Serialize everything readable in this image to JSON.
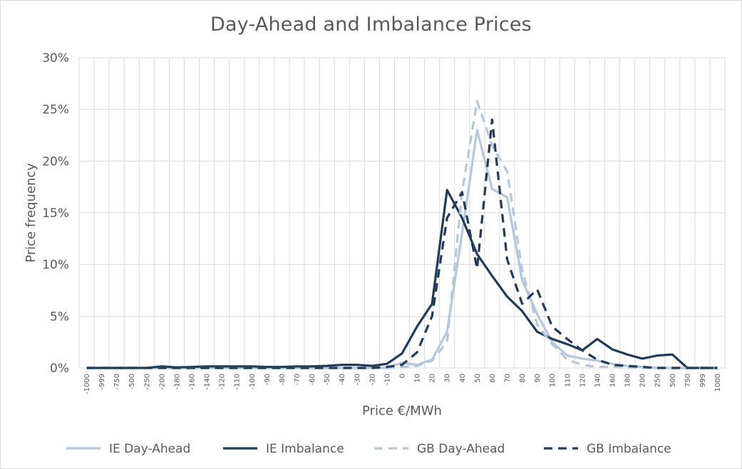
{
  "chart_data": {
    "type": "line",
    "title": "Day-Ahead and Imbalance Prices",
    "xlabel": "Price €/MWh",
    "ylabel": "Price frequency",
    "categories": [
      "-1000",
      "-999",
      "-750",
      "-500",
      "-250",
      "-200",
      "-180",
      "-160",
      "-140",
      "-120",
      "-110",
      "-100",
      "-90",
      "-80",
      "-70",
      "-60",
      "-50",
      "-40",
      "-30",
      "-20",
      "-10",
      "0",
      "10",
      "20",
      "30",
      "40",
      "50",
      "60",
      "70",
      "80",
      "90",
      "100",
      "110",
      "120",
      "140",
      "160",
      "180",
      "200",
      "250",
      "500",
      "750",
      "999",
      "1000"
    ],
    "y_ticks": [
      "0%",
      "5%",
      "10%",
      "15%",
      "20%",
      "25%",
      "30%"
    ],
    "ylim": [
      0,
      30
    ],
    "y_unit": "%",
    "grid": true,
    "legend_position": "bottom",
    "series": [
      {
        "name": "IE Day-Ahead",
        "color": "#b4c7dc",
        "dash": "solid",
        "values": [
          0,
          0,
          0,
          0,
          0,
          0,
          0,
          0,
          0,
          0,
          0,
          0,
          0,
          0,
          0,
          0,
          0,
          0,
          0,
          0,
          0,
          0.5,
          0.3,
          0.8,
          3.5,
          13,
          23,
          17.3,
          16.5,
          8.5,
          5.2,
          2.5,
          1.2,
          0.9,
          0.7,
          0.4,
          0.2,
          0.1,
          0,
          0,
          0,
          0,
          0
        ]
      },
      {
        "name": "IE Imbalance",
        "color": "#1f3b5e",
        "dash": "solid",
        "values": [
          0,
          0,
          0,
          0,
          0,
          0.15,
          0.05,
          0.1,
          0.15,
          0.15,
          0.15,
          0.15,
          0.1,
          0.1,
          0.15,
          0.15,
          0.2,
          0.3,
          0.3,
          0.2,
          0.4,
          1.4,
          4.0,
          6.2,
          17.2,
          14.5,
          11,
          8.9,
          6.9,
          5.5,
          3.5,
          2.8,
          2.3,
          1.7,
          2.8,
          1.8,
          1.3,
          0.9,
          1.2,
          1.3,
          0,
          0,
          0
        ]
      },
      {
        "name": "GB Day-Ahead",
        "color": "#b4c7dc",
        "dash": "dashed",
        "values": [
          0,
          0,
          0,
          0,
          0,
          0,
          0,
          0,
          0,
          0,
          0,
          0,
          0,
          0,
          0,
          0,
          0,
          0,
          0,
          0,
          0,
          0.1,
          0.2,
          0.7,
          2.5,
          17,
          25.8,
          21.5,
          19,
          9.5,
          4.2,
          2.3,
          0.8,
          0.3,
          0.1,
          0.1,
          0.05,
          0,
          0,
          0,
          0,
          0,
          0
        ]
      },
      {
        "name": "GB Imbalance",
        "color": "#1f3b5e",
        "dash": "dashed",
        "values": [
          0,
          0,
          0,
          0,
          0,
          0,
          0,
          0,
          0,
          0,
          0,
          0,
          0,
          0,
          0,
          0,
          0,
          0,
          0,
          0,
          0.1,
          0.3,
          1.5,
          5,
          14.5,
          17,
          9.6,
          24,
          10.5,
          6.2,
          7.6,
          4,
          2.8,
          1.7,
          0.8,
          0.3,
          0.2,
          0.1,
          0,
          0,
          0,
          0,
          0
        ]
      }
    ]
  }
}
